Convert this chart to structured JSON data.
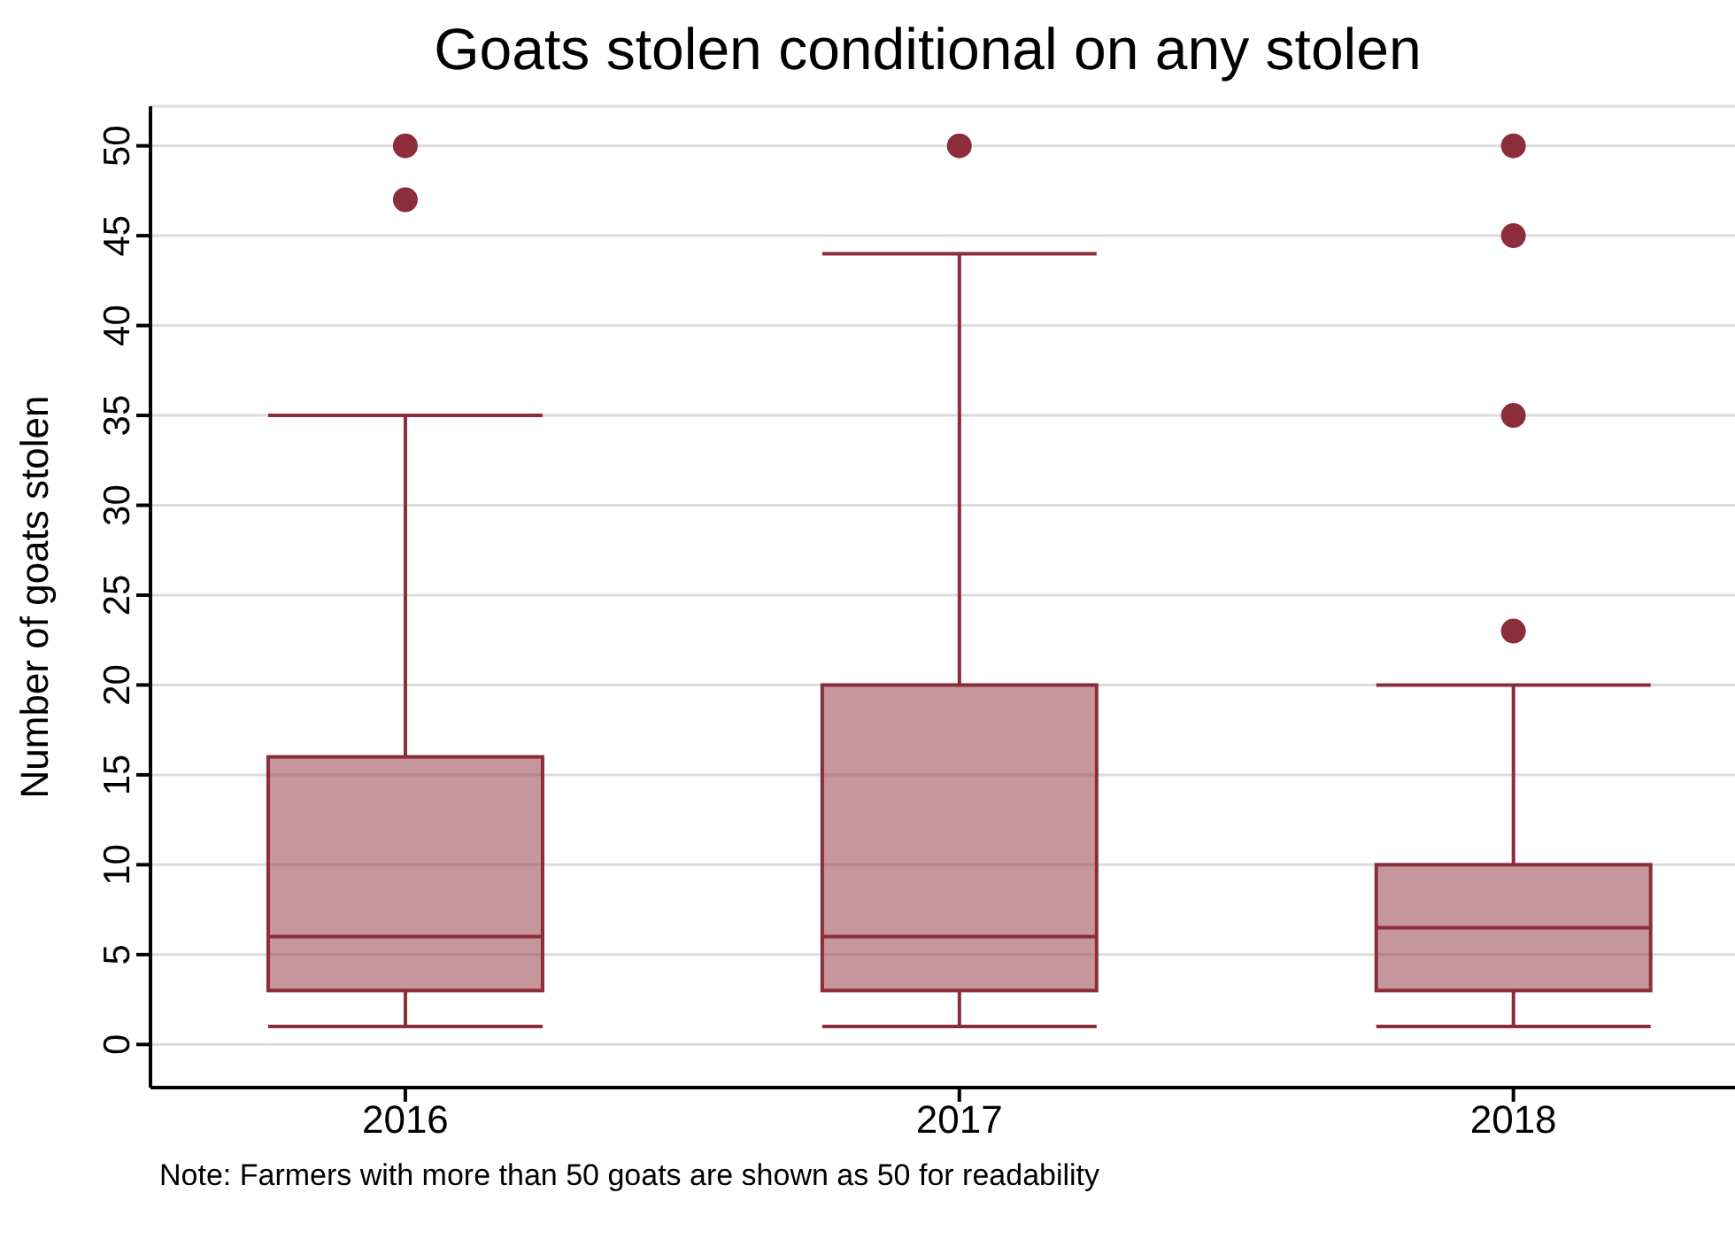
{
  "chart_data": {
    "type": "box",
    "title": "Goats stolen conditional on any stolen",
    "ylabel": "Number of goats stolen",
    "categories": [
      "2016",
      "2017",
      "2018"
    ],
    "series": [
      {
        "color": "#8c2d3a",
        "boxes": [
          {
            "low": 1,
            "q1": 3,
            "median": 6,
            "q3": 16,
            "high": 35,
            "outliers": [
              47,
              50
            ]
          },
          {
            "low": 1,
            "q1": 3,
            "median": 6,
            "q3": 20,
            "high": 44,
            "outliers": [
              50
            ]
          },
          {
            "low": 1,
            "q1": 3,
            "median": 6.5,
            "q3": 10,
            "high": 20,
            "outliers": [
              23,
              35,
              45,
              50
            ]
          }
        ]
      }
    ],
    "ylim": [
      -2.4,
      52.2
    ],
    "yticks": [
      0,
      5,
      10,
      15,
      20,
      25,
      30,
      35,
      40,
      45,
      50
    ],
    "grid": "y",
    "legend": false,
    "annotations": [
      "Note: Farmers with more than 50 goats are shown as 50 for readability"
    ]
  }
}
